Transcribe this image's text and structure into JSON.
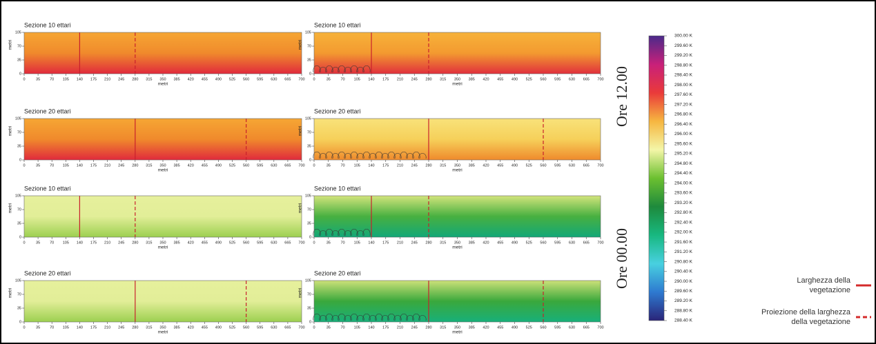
{
  "chart_data": {
    "type": "heatmap",
    "xlabel": "metri",
    "ylabel": "metri",
    "xlim": [
      0,
      700
    ],
    "xticks": [
      0,
      35,
      70,
      105,
      140,
      175,
      210,
      245,
      280,
      315,
      350,
      385,
      420,
      455,
      490,
      525,
      560,
      595,
      630,
      665,
      700
    ],
    "ylim": [
      0,
      105
    ],
    "yticks": [
      0,
      35,
      70,
      105
    ],
    "panels": [
      {
        "title": "Sezione 10 ettari",
        "vegetation_width": 140,
        "projection": 280,
        "trees": false,
        "colors": [
          "#f6a634",
          "#f08a2c",
          "#e02a3c"
        ]
      },
      {
        "title": "Sezione 10 ettari",
        "vegetation_width": 140,
        "projection": 280,
        "trees": true,
        "colors": [
          "#f7b23a",
          "#f39a30",
          "#e0303c"
        ]
      },
      {
        "title": "Sezione 20 ettari",
        "vegetation_width": 280,
        "projection": 560,
        "trees": false,
        "colors": [
          "#f6a634",
          "#f08a2c",
          "#e02a3c"
        ]
      },
      {
        "title": "Sezione 20 ettari",
        "vegetation_width": 280,
        "projection": 560,
        "trees": true,
        "colors": [
          "#f8e27a",
          "#f6d05a",
          "#ef8a2c"
        ]
      },
      {
        "title": "Sezione 10 ettari",
        "vegetation_width": 140,
        "projection": 280,
        "trees": false,
        "colors": [
          "#e6f09c",
          "#e2ee98",
          "#9cd050"
        ]
      },
      {
        "title": "Sezione 10 ettari",
        "vegetation_width": 140,
        "projection": 280,
        "trees": true,
        "colors": [
          "#d2e47c",
          "#48b040",
          "#12a878"
        ]
      },
      {
        "title": "Sezione 20 ettari",
        "vegetation_width": 280,
        "projection": 560,
        "trees": false,
        "colors": [
          "#e6f09c",
          "#e2ee98",
          "#9cd050"
        ]
      },
      {
        "title": "Sezione 20 ettari",
        "vegetation_width": 280,
        "projection": 560,
        "trees": true,
        "colors": [
          "#cce078",
          "#3aa83c",
          "#18b07a"
        ]
      }
    ],
    "time_labels": [
      "Ore 12.00",
      "Ore 00.00"
    ],
    "colorbar": {
      "lim": [
        288.4,
        300.0
      ],
      "colors": [
        "#2a2478",
        "#2e7ad0",
        "#48d0e0",
        "#18b880",
        "#1e8a3c",
        "#6cc030",
        "#f4f6a8",
        "#f6b640",
        "#ea3a3a",
        "#c8207a",
        "#4a2a8a"
      ],
      "ticks": [
        {
          "value": 288.4,
          "label": "288.40 K"
        },
        {
          "value": 288.8,
          "label": "288.80 K"
        },
        {
          "value": 289.2,
          "label": "289.20 K"
        },
        {
          "value": 289.6,
          "label": "289.60 K"
        },
        {
          "value": 290.0,
          "label": "290.00 K"
        },
        {
          "value": 290.4,
          "label": "290.40 K"
        },
        {
          "value": 290.8,
          "label": "290.80 K"
        },
        {
          "value": 291.2,
          "label": "291.20 K"
        },
        {
          "value": 291.6,
          "label": "291.60 K"
        },
        {
          "value": 292.0,
          "label": "292.00 K"
        },
        {
          "value": 292.4,
          "label": "292.40 K"
        },
        {
          "value": 292.8,
          "label": "292.80 K"
        },
        {
          "value": 293.2,
          "label": "293.20 K"
        },
        {
          "value": 293.6,
          "label": "293.60 K"
        },
        {
          "value": 294.0,
          "label": "294.00 K"
        },
        {
          "value": 294.4,
          "label": "294.40 K"
        },
        {
          "value": 294.8,
          "label": "294.80 K"
        },
        {
          "value": 295.2,
          "label": "295.20 K"
        },
        {
          "value": 295.6,
          "label": "295.60 K"
        },
        {
          "value": 296.0,
          "label": "296.00 K"
        },
        {
          "value": 296.4,
          "label": "296.40 K"
        },
        {
          "value": 296.8,
          "label": "296.80 K"
        },
        {
          "value": 297.2,
          "label": "297.20 K"
        },
        {
          "value": 297.6,
          "label": "297.60 K"
        },
        {
          "value": 298.0,
          "label": "298.00 K"
        },
        {
          "value": 298.4,
          "label": "298.40 K"
        },
        {
          "value": 298.8,
          "label": "298.80 K"
        },
        {
          "value": 299.2,
          "label": "299.20 K"
        },
        {
          "value": 299.6,
          "label": "299.60 K"
        },
        {
          "value": 300.0,
          "label": "300.00 K"
        }
      ]
    },
    "legend": [
      {
        "label": "Larghezza della vegetazione",
        "color": "#d42a2a",
        "dashed": false
      },
      {
        "label": "Proiezione della larghezza della vegetazione",
        "color": "#d42a2a",
        "dashed": true
      }
    ]
  }
}
